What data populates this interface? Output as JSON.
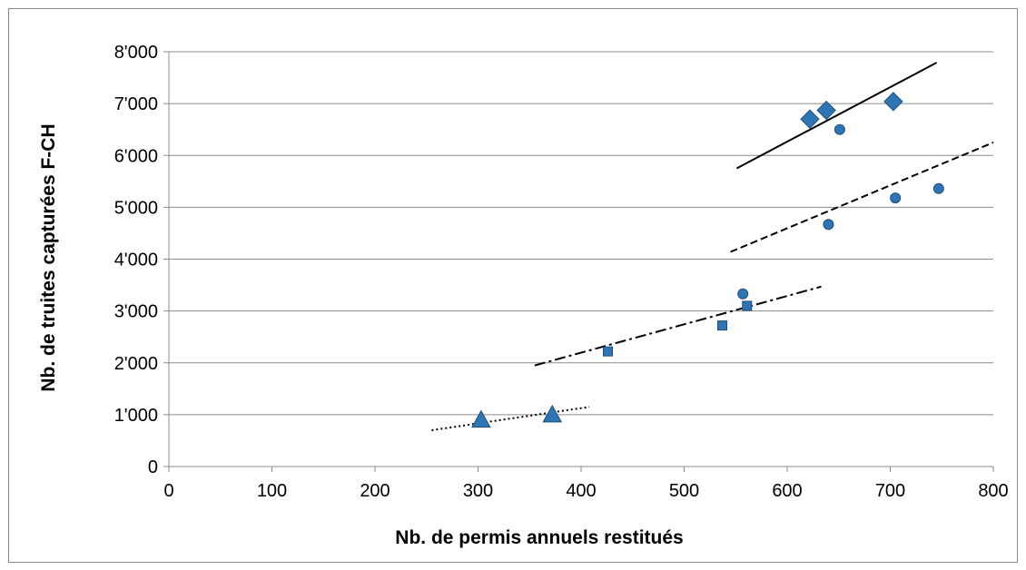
{
  "chart_data": {
    "type": "scatter",
    "title": "",
    "xlabel": "Nb. de permis annuels restitués",
    "ylabel": "Nb. de truites capturées F-CH",
    "xlim": [
      0,
      800
    ],
    "ylim": [
      0,
      8000
    ],
    "x_ticks": [
      {
        "value": 0,
        "label": "0"
      },
      {
        "value": 100,
        "label": "100"
      },
      {
        "value": 200,
        "label": "200"
      },
      {
        "value": 300,
        "label": "300"
      },
      {
        "value": 400,
        "label": "400"
      },
      {
        "value": 500,
        "label": "500"
      },
      {
        "value": 600,
        "label": "600"
      },
      {
        "value": 700,
        "label": "700"
      },
      {
        "value": 800,
        "label": "800"
      }
    ],
    "y_ticks": [
      {
        "value": 0,
        "label": "0"
      },
      {
        "value": 1000,
        "label": "1'000"
      },
      {
        "value": 2000,
        "label": "2'000"
      },
      {
        "value": 3000,
        "label": "3'000"
      },
      {
        "value": 4000,
        "label": "4'000"
      },
      {
        "value": 5000,
        "label": "5'000"
      },
      {
        "value": 6000,
        "label": "6'000"
      },
      {
        "value": 7000,
        "label": "7'000"
      },
      {
        "value": 8000,
        "label": "8'000"
      }
    ],
    "grid": {
      "horizontal": true,
      "vertical": false
    },
    "legend": "none",
    "color": "#2e75b6",
    "series": [
      {
        "marker": "diamond",
        "points": [
          [
            622,
            6700
          ],
          [
            638,
            6870
          ],
          [
            703,
            7040
          ]
        ]
      },
      {
        "marker": "circle",
        "points": [
          [
            651,
            6500
          ],
          [
            640,
            4670
          ],
          [
            705,
            5180
          ],
          [
            747,
            5360
          ]
        ]
      },
      {
        "marker": "circle",
        "points": [
          [
            557,
            3330
          ]
        ]
      },
      {
        "marker": "square",
        "points": [
          [
            426,
            2220
          ],
          [
            537,
            2720
          ],
          [
            561,
            3100
          ]
        ]
      },
      {
        "marker": "triangle",
        "points": [
          [
            303,
            900
          ],
          [
            372,
            1000
          ]
        ]
      }
    ],
    "trendlines": [
      {
        "style": "solid",
        "from": [
          551,
          5750
        ],
        "to": [
          745,
          7790
        ]
      },
      {
        "style": "dashed",
        "from": [
          545,
          4140
        ],
        "to": [
          800,
          6250
        ]
      },
      {
        "style": "dashdot",
        "from": [
          355,
          1950
        ],
        "to": [
          633,
          3470
        ]
      },
      {
        "style": "dotted",
        "from": [
          255,
          700
        ],
        "to": [
          408,
          1150
        ]
      }
    ]
  }
}
